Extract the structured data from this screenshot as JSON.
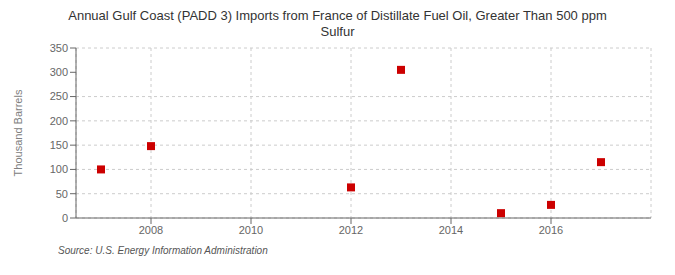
{
  "chart_data": {
    "type": "scatter",
    "title": "Annual Gulf Coast (PADD 3) Imports from France of Distillate Fuel Oil, Greater Than 500 ppm\nSulfur",
    "ylabel": "Thousand Barrels",
    "annotations": [
      "Source: U.S. Energy Information Administration"
    ],
    "x": [
      2007,
      2008,
      2012,
      2013,
      2015,
      2016,
      2017
    ],
    "values": [
      100,
      148,
      63,
      305,
      10,
      27,
      115
    ],
    "color": "#cc0000",
    "marker": "square",
    "xlim": [
      2006.5,
      2018
    ],
    "ylim": [
      0,
      350
    ],
    "xticks": [
      2008,
      2010,
      2012,
      2014,
      2016
    ],
    "yticks": [
      0,
      50,
      100,
      150,
      200,
      250,
      300,
      350
    ],
    "grid": true
  }
}
